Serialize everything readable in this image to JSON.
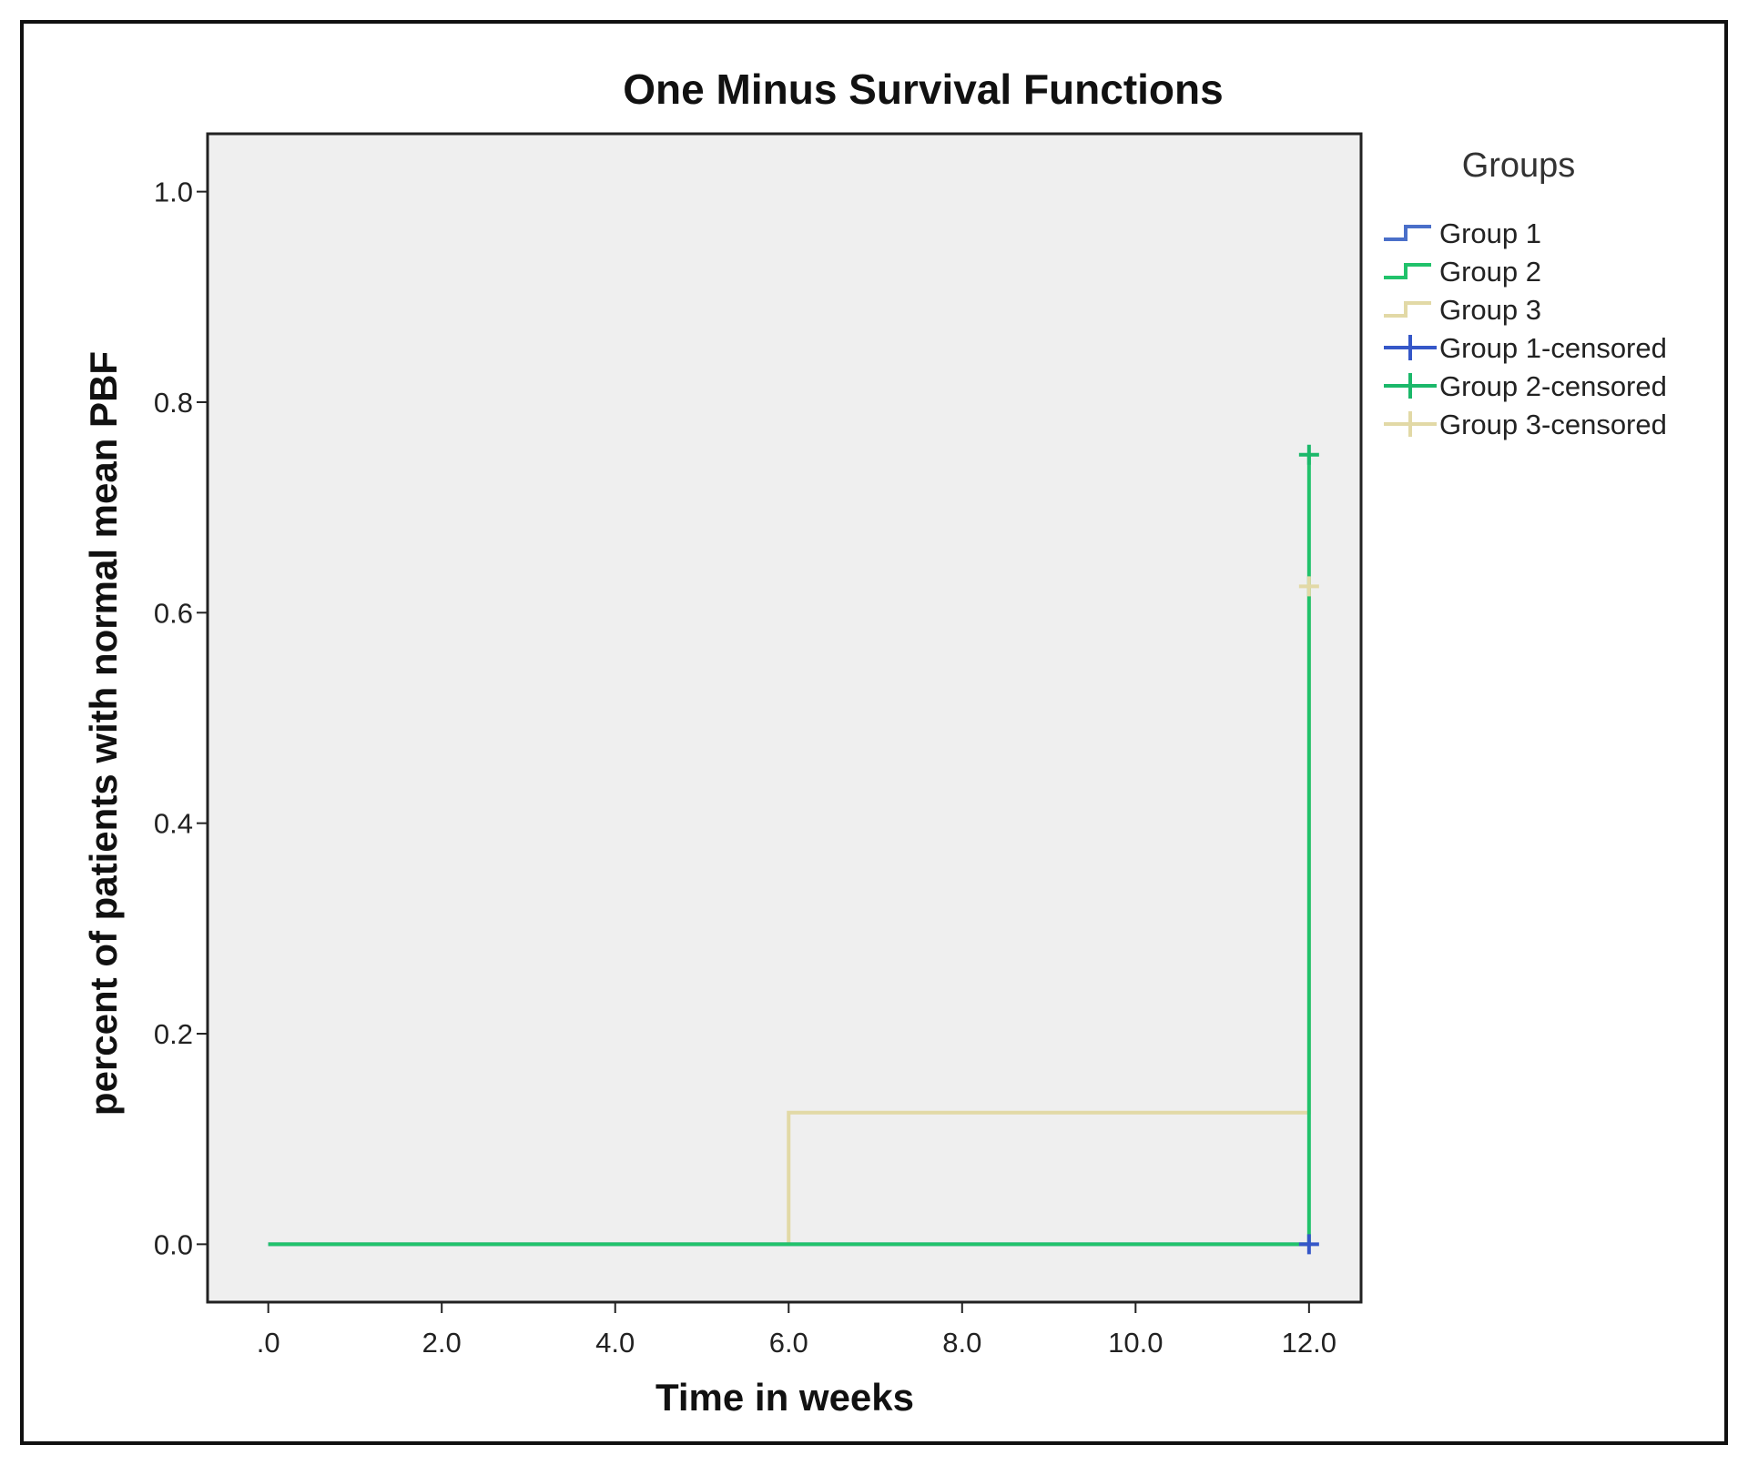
{
  "chart_data": {
    "type": "line",
    "title": "One Minus Survival Functions",
    "xlabel": "Time in weeks",
    "ylabel": "percent of patients with normal mean PBF",
    "xlim": [
      -0.7,
      12.6
    ],
    "ylim": [
      -0.055,
      1.055
    ],
    "x_ticks": [
      0,
      2,
      4,
      6,
      8,
      10,
      12
    ],
    "x_tick_labels": [
      ".0",
      "2.0",
      "4.0",
      "6.0",
      "8.0",
      "10.0",
      "12.0"
    ],
    "y_ticks": [
      0,
      0.2,
      0.4,
      0.6,
      0.8,
      1.0
    ],
    "y_tick_labels": [
      "0.0",
      "0.2",
      "0.4",
      "0.6",
      "0.8",
      "1.0"
    ],
    "grid": false,
    "plot_background": "#efefef",
    "legend_title": "Groups",
    "legend_position": "right",
    "legend": [
      {
        "label": "Group 1",
        "kind": "step",
        "color": "#4a6fc9"
      },
      {
        "label": "Group 2",
        "kind": "step",
        "color": "#21c26b"
      },
      {
        "label": "Group 3",
        "kind": "step",
        "color": "#e2d9a6"
      },
      {
        "label": "Group 1-censored",
        "kind": "censor",
        "color": "#3557c8"
      },
      {
        "label": "Group 2-censored",
        "kind": "censor",
        "color": "#1bb86a"
      },
      {
        "label": "Group 3-censored",
        "kind": "censor",
        "color": "#e2d9a6"
      }
    ],
    "series": [
      {
        "name": "Group 3",
        "color": "#e2d9a6",
        "x": [
          0,
          6,
          12
        ],
        "y": [
          0,
          0.125,
          0.625
        ]
      },
      {
        "name": "Group 1",
        "color": "#4a6fc9",
        "x": [
          0,
          12
        ],
        "y": [
          0,
          0
        ]
      },
      {
        "name": "Group 2",
        "color": "#21c26b",
        "x": [
          0,
          12
        ],
        "y": [
          0,
          0.75
        ]
      }
    ],
    "censored": [
      {
        "name": "Group 3-censored",
        "color": "#e2d9a6",
        "x": 12,
        "y": 0.625
      },
      {
        "name": "Group 2-censored",
        "color": "#1bb86a",
        "x": 12,
        "y": 0.75
      },
      {
        "name": "Group 1-censored",
        "color": "#3557c8",
        "x": 12,
        "y": 0
      }
    ]
  }
}
